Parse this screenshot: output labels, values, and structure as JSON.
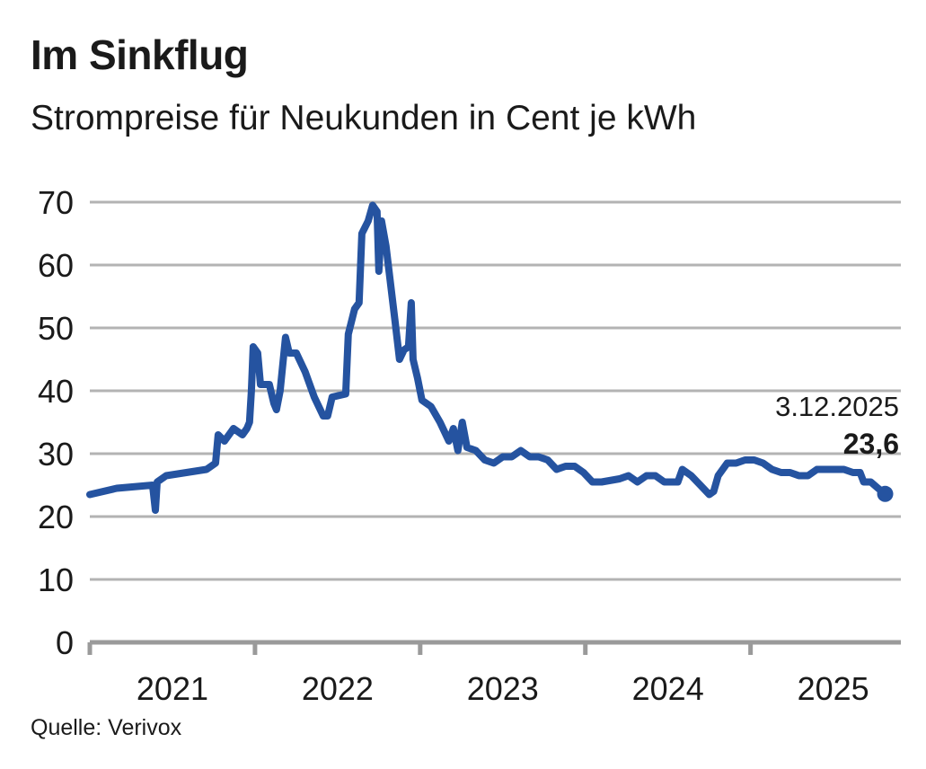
{
  "chart_data": {
    "type": "line",
    "title": "Im Sinkflug",
    "subtitle": "Strompreise für Neukunden in Cent je kWh",
    "source": "Quelle: Verivox",
    "xlabel": "",
    "ylabel": "",
    "ylim": [
      0,
      70
    ],
    "xlim": [
      2021.0,
      2025.91
    ],
    "yticks": [
      0,
      10,
      20,
      30,
      40,
      50,
      60,
      70
    ],
    "xticks": [
      {
        "label": "2021",
        "start": 2021
      },
      {
        "label": "2022",
        "start": 2022
      },
      {
        "label": "2023",
        "start": 2023
      },
      {
        "label": "2024",
        "start": 2024
      },
      {
        "label": "2025",
        "start": 2025
      }
    ],
    "grid": true,
    "color": "#2553a0",
    "annotation": {
      "date": "3.12.2025",
      "value_label": "23,6",
      "x": 2025.815,
      "y": 23.6
    },
    "series": [
      {
        "name": "Strompreis Neukunden",
        "x": [
          2021.0,
          2021.163,
          2021.38,
          2021.397,
          2021.408,
          2021.462,
          2021.707,
          2021.761,
          2021.777,
          2021.815,
          2021.87,
          2021.924,
          2021.951,
          2021.967,
          2021.978,
          2021.989,
          2022.016,
          2022.033,
          2022.087,
          2022.114,
          2022.13,
          2022.152,
          2022.185,
          2022.207,
          2022.25,
          2022.304,
          2022.359,
          2022.413,
          2022.44,
          2022.467,
          2022.549,
          2022.565,
          2022.603,
          2022.63,
          2022.647,
          2022.685,
          2022.712,
          2022.739,
          2022.75,
          2022.766,
          2022.793,
          2022.848,
          2022.875,
          2022.902,
          2022.929,
          2022.946,
          2022.957,
          2022.984,
          2023.011,
          2023.065,
          2023.12,
          2023.174,
          2023.201,
          2023.228,
          2023.255,
          2023.283,
          2023.337,
          2023.391,
          2023.446,
          2023.5,
          2023.554,
          2023.609,
          2023.663,
          2023.717,
          2023.772,
          2023.826,
          2023.88,
          2023.935,
          2023.989,
          2024.043,
          2024.098,
          2024.207,
          2024.261,
          2024.315,
          2024.37,
          2024.424,
          2024.478,
          2024.56,
          2024.587,
          2024.641,
          2024.696,
          2024.75,
          2024.777,
          2024.804,
          2024.859,
          2024.913,
          2024.967,
          2025.022,
          2025.076,
          2025.13,
          2025.185,
          2025.239,
          2025.293,
          2025.348,
          2025.402,
          2025.457,
          2025.511,
          2025.565,
          2025.62,
          2025.663,
          2025.685,
          2025.728,
          2025.772,
          2025.815
        ],
        "values": [
          23.5,
          24.5,
          25,
          21,
          25.5,
          26.5,
          27.5,
          28.5,
          33,
          32,
          34,
          33,
          34,
          35,
          40,
          47,
          46,
          41,
          41,
          38,
          37,
          40,
          48.5,
          46,
          46,
          43,
          39,
          36,
          36,
          39,
          39.5,
          49,
          53,
          54,
          65,
          67,
          69.5,
          68.5,
          59,
          67,
          63,
          51,
          45,
          46.5,
          47,
          54,
          45,
          42,
          38.5,
          37.5,
          35,
          32,
          34,
          30.5,
          35,
          31,
          30.5,
          29,
          28.5,
          29.5,
          29.5,
          30.5,
          29.5,
          29.5,
          29,
          27.5,
          28,
          28,
          27,
          25.5,
          25.5,
          26,
          26.5,
          25.5,
          26.5,
          26.5,
          25.5,
          25.5,
          27.5,
          26.5,
          25,
          23.5,
          24,
          26.5,
          28.5,
          28.5,
          29,
          29,
          28.5,
          27.5,
          27,
          27,
          26.5,
          26.5,
          27.5,
          27.5,
          27.5,
          27.5,
          27,
          27,
          25.5,
          25.5,
          24.5,
          23.6
        ]
      }
    ]
  }
}
